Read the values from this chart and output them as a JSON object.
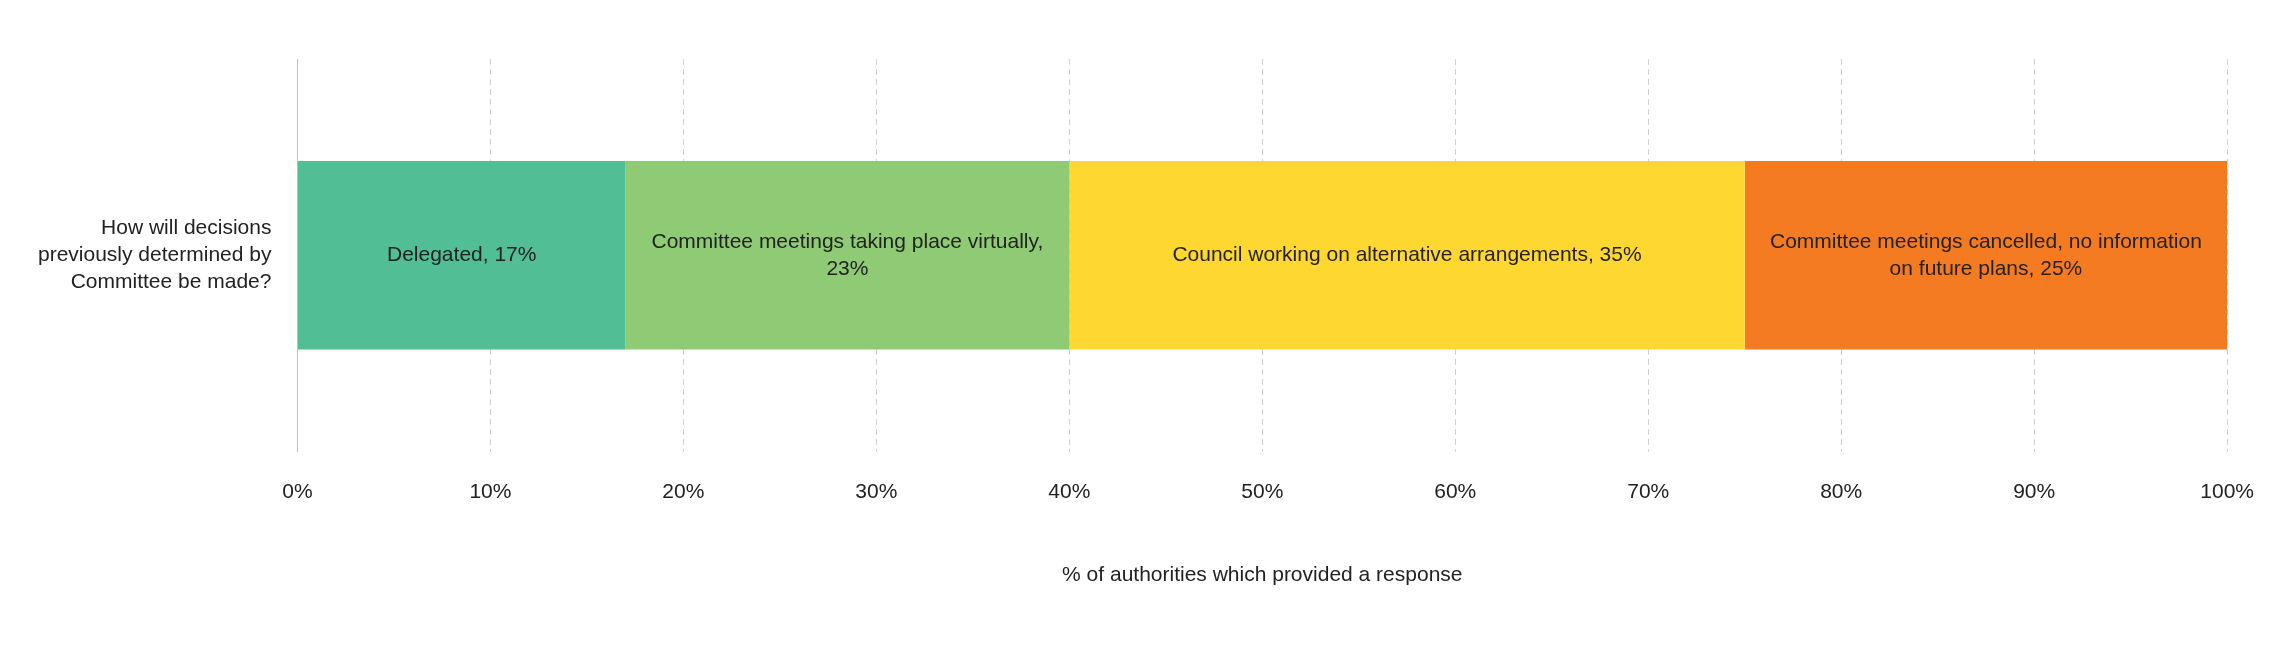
{
  "chart_data": {
    "type": "bar",
    "orientation": "horizontal",
    "stacked": true,
    "xlabel": "% of authorities which provided a response",
    "categories": [
      "How will decisions previously determined by Committee be made?"
    ],
    "series": [
      {
        "color": "#52be96",
        "values": [
          17
        ],
        "value_labels": [
          "Delegated, 17%"
        ]
      },
      {
        "color": "#8fca75",
        "values": [
          23
        ],
        "value_labels": [
          "Committee meetings taking place virtually, 23%"
        ]
      },
      {
        "color": "#fed731",
        "values": [
          35
        ],
        "value_labels": [
          "Council working on alternative arrangements, 35%"
        ]
      },
      {
        "color": "#f47b22",
        "values": [
          25
        ],
        "value_labels": [
          "Committee meetings cancelled, no information on future plans, 25%"
        ]
      }
    ],
    "xlim": [
      0,
      100
    ],
    "xticks": [
      {
        "value": 0,
        "label": "0%"
      },
      {
        "value": 10,
        "label": "10%"
      },
      {
        "value": 20,
        "label": "20%"
      },
      {
        "value": 30,
        "label": "30%"
      },
      {
        "value": 40,
        "label": "40%"
      },
      {
        "value": 50,
        "label": "50%"
      },
      {
        "value": 60,
        "label": "60%"
      },
      {
        "value": 70,
        "label": "70%"
      },
      {
        "value": 80,
        "label": "80%"
      },
      {
        "value": 90,
        "label": "90%"
      },
      {
        "value": 100,
        "label": "100%"
      }
    ],
    "grid": "x",
    "legend": false
  }
}
